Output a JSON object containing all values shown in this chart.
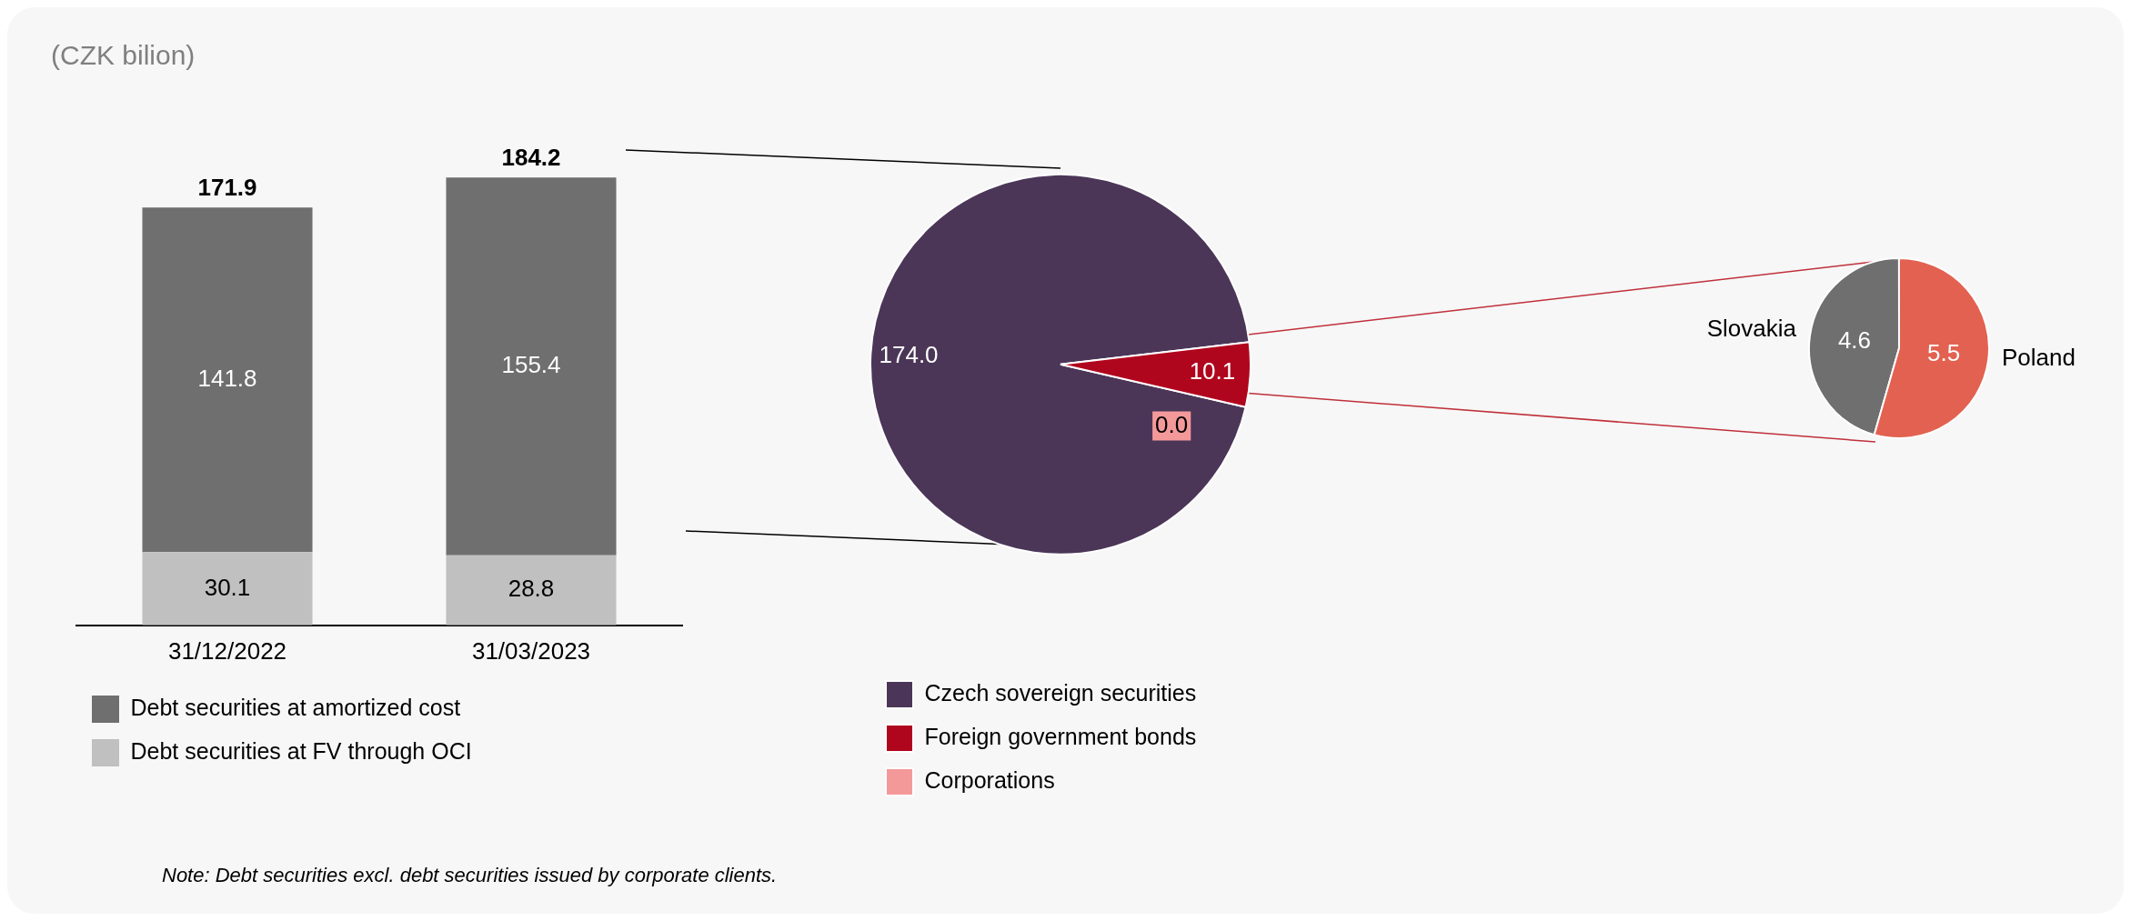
{
  "chart_data": [
    {
      "type": "bar",
      "title": "(CZK bilion)",
      "categories": [
        "31/12/2022",
        "31/03/2023"
      ],
      "stacked": true,
      "series": [
        {
          "name": "Debt securities at FV through OCI",
          "color": "#c0c0c0",
          "values": [
            30.1,
            28.8
          ]
        },
        {
          "name": "Debt securities at amortized cost",
          "color": "#6f6f6f",
          "values": [
            141.8,
            155.4
          ]
        }
      ],
      "totals": [
        "171.9",
        "184.2"
      ],
      "data_labels": true,
      "legend": "bottom",
      "grid": false,
      "annotations": [
        "Note: Debt securities excl. debt securities issued by corporate clients."
      ]
    },
    {
      "type": "pie",
      "categories": [
        "Czech sovereign securities",
        "Foreign government bonds",
        "Corporations"
      ],
      "values": [
        174.0,
        10.1,
        0.0
      ],
      "value_labels": [
        "174.0",
        "10.1",
        "0.0"
      ],
      "colors": [
        "#4b3658",
        "#b0061d",
        "#f4999a"
      ],
      "data_labels": true,
      "legend": "bottom"
    },
    {
      "type": "pie",
      "categories": [
        "Slovakia",
        "Poland"
      ],
      "values": [
        4.6,
        5.5
      ],
      "colors": [
        "#6f6f6f",
        "#e36150"
      ],
      "data_labels": true,
      "legend": false
    }
  ]
}
